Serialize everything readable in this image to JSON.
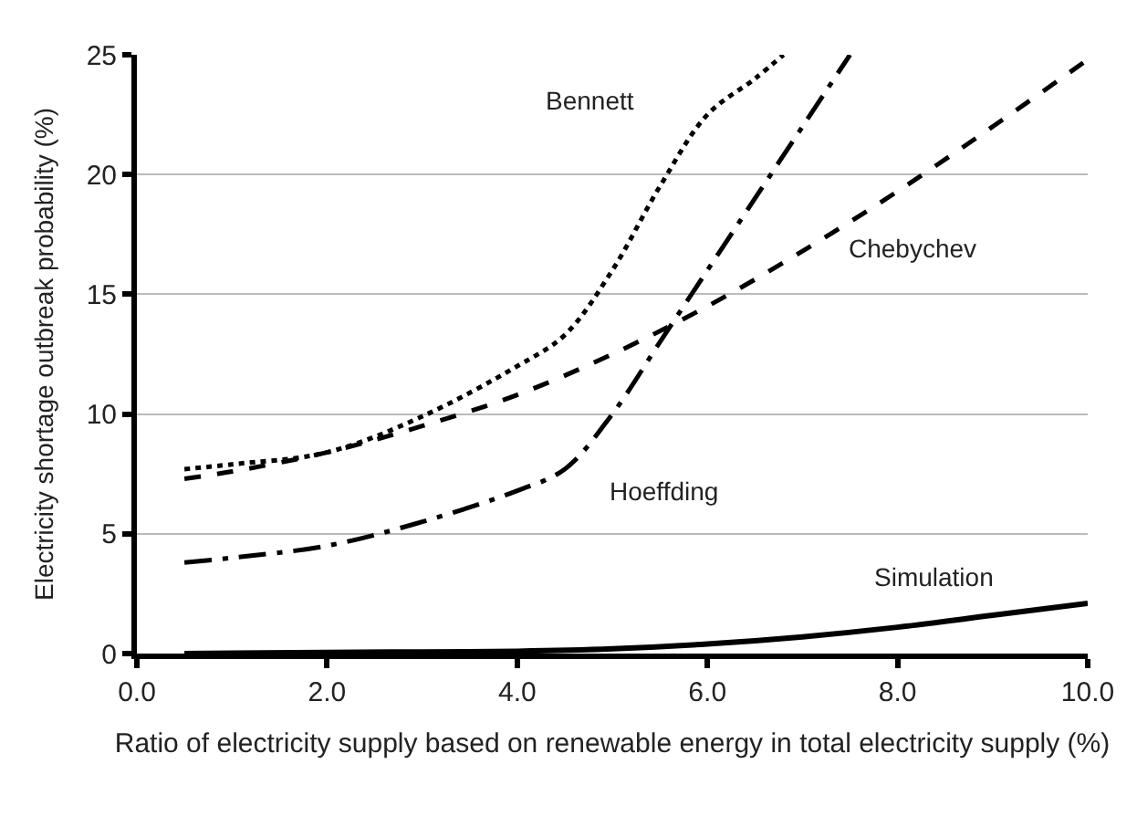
{
  "chart_data": {
    "type": "line",
    "xlabel": "Ratio of electricity supply based on renewable energy in total electricity supply (%)",
    "ylabel": "Electricity shortage outbreak probability (%)",
    "series": [
      {
        "name": "Bennett",
        "color": "#000000",
        "line_style": "dotted",
        "x": [
          0.5,
          1,
          2,
          3,
          4,
          4.5,
          5,
          5.5,
          6,
          6.5,
          6.8
        ],
        "values": [
          7.7,
          7.9,
          8.4,
          9.9,
          12,
          13.3,
          16,
          19.5,
          22.5,
          24,
          25
        ]
      },
      {
        "name": "Chebychev",
        "color": "#000000",
        "line_style": "dashed",
        "x": [
          0.5,
          1,
          2,
          3,
          4,
          5,
          6,
          7,
          8,
          9,
          10
        ],
        "values": [
          7.3,
          7.6,
          8.4,
          9.5,
          10.8,
          12.5,
          14.5,
          16.8,
          19.3,
          22,
          24.8
        ]
      },
      {
        "name": "Hoeffding",
        "color": "#000000",
        "line_style": "dashdot",
        "x": [
          0.5,
          1,
          2,
          3,
          4,
          4.5,
          5,
          5.5,
          6,
          6.5,
          7,
          7.5
        ],
        "values": [
          3.8,
          4,
          4.5,
          5.5,
          6.8,
          7.7,
          10,
          13,
          16,
          19,
          22,
          25
        ]
      },
      {
        "name": "Simulation",
        "color": "#000000",
        "line_style": "solid",
        "x": [
          0.5,
          2,
          3,
          4,
          5,
          6,
          7,
          8,
          9,
          10
        ],
        "values": [
          0,
          0.05,
          0.07,
          0.1,
          0.2,
          0.4,
          0.7,
          1.1,
          1.6,
          2.1
        ]
      }
    ],
    "xlim": [
      0,
      10
    ],
    "xticks": [
      {
        "value": 0,
        "label": "0.0"
      },
      {
        "value": 2,
        "label": "2.0"
      },
      {
        "value": 4,
        "label": "4.0"
      },
      {
        "value": 6,
        "label": "6.0"
      },
      {
        "value": 8,
        "label": "8.0"
      },
      {
        "value": 10,
        "label": "10.0"
      }
    ],
    "ylim": [
      0,
      25
    ],
    "yticks": [
      0,
      5,
      10,
      15,
      20,
      25
    ],
    "grid": "y",
    "legend": false,
    "marker": "none"
  }
}
